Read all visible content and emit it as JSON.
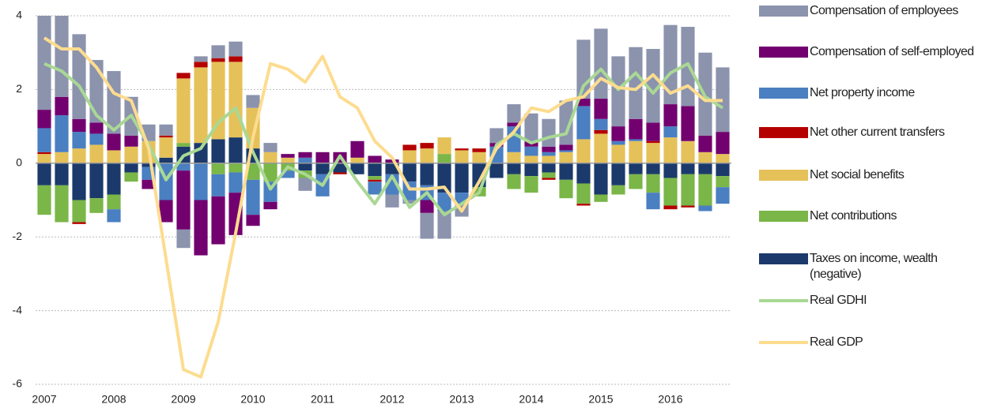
{
  "chart_data": {
    "type": "bar",
    "categories": [
      "2007",
      null,
      null,
      null,
      "2008",
      null,
      null,
      null,
      "2009",
      null,
      null,
      null,
      "2010",
      null,
      null,
      null,
      "2011",
      null,
      null,
      null,
      "2012",
      null,
      null,
      null,
      "2013",
      null,
      null,
      null,
      "2014",
      null,
      null,
      null,
      "2015",
      null,
      null,
      null,
      "2016",
      null,
      null,
      null
    ],
    "ylim": [
      -6,
      4
    ],
    "yticks": [
      -6,
      -4,
      -2,
      0,
      2,
      4
    ],
    "grid": true,
    "stacked": true,
    "series": [
      {
        "name": "Compensation of employees",
        "type": "bar",
        "color": "#8b93ad",
        "values": [
          2.55,
          2.2,
          2.3,
          1.7,
          1.7,
          1.05,
          0.45,
          0.3,
          -0.5,
          0.15,
          0.35,
          0.4,
          0.35,
          0.25,
          0,
          -0.35,
          0,
          0,
          0,
          0,
          -0.35,
          -0.1,
          -0.7,
          -0.75,
          -0.35,
          0,
          0.4,
          0.5,
          0.75,
          0.75,
          1.2,
          1.6,
          1.9,
          1.9,
          1.95,
          2.0,
          2.15,
          2.15,
          2.25,
          1.75
        ]
      },
      {
        "name": "Compensation of self-employed",
        "type": "bar",
        "color": "#72006f",
        "values": [
          0.5,
          0.5,
          0.35,
          0.3,
          0.45,
          0.3,
          -0.25,
          -0.6,
          -1.6,
          -1.5,
          -1.3,
          -1.15,
          -0.3,
          -0.2,
          0.1,
          0.15,
          0.3,
          0.3,
          0.45,
          0.2,
          0.1,
          0,
          -0.35,
          0,
          0,
          0,
          0.1,
          0.1,
          0.15,
          0.15,
          0.15,
          0.2,
          0.55,
          0.4,
          0.55,
          0.5,
          0.6,
          0.95,
          0.45,
          0.6
        ]
      },
      {
        "name": "Net property income",
        "type": "bar",
        "color": "#4a7fc1",
        "values": [
          0.65,
          1.0,
          0.45,
          0.3,
          -0.35,
          0,
          -0.35,
          -1.0,
          -0.2,
          -1.0,
          -0.6,
          -0.55,
          -0.95,
          -0.55,
          -0.2,
          0.15,
          -0.6,
          0,
          0,
          -0.35,
          -0.55,
          -0.5,
          -0.4,
          -0.5,
          -0.3,
          0,
          0.45,
          0.7,
          0.25,
          0.1,
          0.05,
          0.9,
          0.3,
          0.1,
          0.05,
          -0.45,
          0.3,
          0,
          -0.15,
          -0.45
        ]
      },
      {
        "name": "Net other current transfers",
        "type": "bar",
        "color": "#b50000",
        "values": [
          0.05,
          0,
          -0.05,
          0,
          0,
          0,
          0,
          0.05,
          0.15,
          0.15,
          0.1,
          0.15,
          0,
          0,
          0,
          0,
          0,
          -0.05,
          0,
          -0.05,
          0,
          0.15,
          0.15,
          0,
          0.05,
          0.1,
          0,
          0,
          0,
          -0.05,
          0,
          -0.05,
          0.1,
          0,
          0,
          0.05,
          -0.1,
          -0.05,
          0,
          0
        ]
      },
      {
        "name": "Net social benefits",
        "type": "bar",
        "color": "#e5c15a",
        "values": [
          0.25,
          0.3,
          0.4,
          0.5,
          0.35,
          0.45,
          0.6,
          0.55,
          1.75,
          2.05,
          2.1,
          2.05,
          1.1,
          0.3,
          0.15,
          0,
          0,
          0,
          0.15,
          0,
          0,
          0.35,
          0.4,
          0.45,
          0.35,
          0.3,
          0,
          0.3,
          0.2,
          0.2,
          0.3,
          0.65,
          0.8,
          0.5,
          0.6,
          0.55,
          0.7,
          0.6,
          0.3,
          0.25
        ]
      },
      {
        "name": "Net contributions",
        "type": "bar",
        "color": "#7ab648",
        "values": [
          -0.8,
          -1.0,
          -0.6,
          -0.4,
          -0.4,
          -0.25,
          0,
          0,
          0.1,
          0,
          -0.3,
          -0.25,
          -0.45,
          -0.5,
          -0.2,
          -0.2,
          0,
          0,
          0,
          -0.1,
          0,
          0,
          0,
          0.25,
          0,
          -0.25,
          0,
          -0.4,
          -0.45,
          -0.15,
          -0.5,
          -0.55,
          -0.2,
          -0.25,
          -0.4,
          -0.5,
          -0.75,
          -0.85,
          -0.85,
          -0.3
        ]
      },
      {
        "name": "Taxes on income, wealth (negative)",
        "type": "bar",
        "color": "#1b3a6b",
        "values": [
          -0.6,
          -0.6,
          -1.0,
          -0.95,
          -0.85,
          -0.25,
          -0.1,
          0.15,
          0.45,
          0.55,
          0.65,
          0.7,
          0.4,
          0,
          0,
          -0.2,
          -0.3,
          -0.25,
          -0.3,
          -0.35,
          -0.3,
          -0.5,
          -0.6,
          -0.8,
          -0.8,
          -0.65,
          -0.4,
          -0.3,
          -0.35,
          -0.25,
          -0.45,
          -0.55,
          -0.85,
          -0.6,
          -0.3,
          -0.3,
          -0.4,
          -0.3,
          -0.3,
          -0.35
        ]
      },
      {
        "name": "Real GDHI",
        "type": "line",
        "color": "#a9d894",
        "values": [
          2.7,
          2.5,
          2.1,
          1.3,
          0.9,
          1.3,
          0.5,
          -0.45,
          0.2,
          0.4,
          1.1,
          1.5,
          0.3,
          -0.7,
          -0.1,
          -0.3,
          -0.6,
          0.2,
          -0.5,
          -1.1,
          -0.35,
          -1.2,
          -0.8,
          -1.4,
          -1.1,
          -0.8,
          0.5,
          0.8,
          0.55,
          0.7,
          0.8,
          2.1,
          2.55,
          2.0,
          2.45,
          1.9,
          2.45,
          2.7,
          1.8,
          1.5
        ]
      },
      {
        "name": "Real GDP",
        "type": "line",
        "color": "#fddc8f",
        "values": [
          3.4,
          3.1,
          3.1,
          2.6,
          1.9,
          1.7,
          0.4,
          -2.6,
          -5.6,
          -5.8,
          -4.3,
          -1.9,
          0.7,
          2.7,
          2.55,
          2.2,
          2.9,
          1.8,
          1.5,
          0.6,
          0.15,
          -0.7,
          -0.7,
          -0.65,
          -1.3,
          -0.5,
          0.4,
          0.85,
          1.5,
          1.4,
          1.7,
          1.8,
          2.3,
          2.05,
          2.0,
          2.4,
          1.9,
          2.1,
          1.7,
          1.7
        ]
      }
    ]
  }
}
